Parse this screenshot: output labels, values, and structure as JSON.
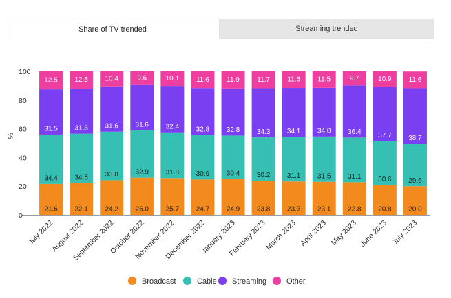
{
  "tabs": [
    {
      "label": "Share of TV trended",
      "active": true
    },
    {
      "label": "Streaming trended",
      "active": false
    }
  ],
  "chart_data": {
    "type": "bar",
    "stacked": true,
    "title": "",
    "xlabel": "",
    "ylabel": "%",
    "ylim": [
      0,
      100
    ],
    "yticks": [
      0,
      20,
      40,
      60,
      80,
      100
    ],
    "categories": [
      "July 2022",
      "August 2022",
      "September 2022",
      "October 2022",
      "November 2022",
      "December 2022",
      "January 2023",
      "February 2023",
      "March 2023",
      "April 2023",
      "May 2023",
      "June 2023",
      "July 2023"
    ],
    "series": [
      {
        "name": "Broadcast",
        "color": "#f28a1e",
        "label_color": "#1f1f1f",
        "values": [
          21.6,
          22.1,
          24.2,
          26.0,
          25.7,
          24.7,
          24.9,
          23.8,
          23.3,
          23.1,
          22.8,
          20.8,
          20.0
        ]
      },
      {
        "name": "Cable",
        "color": "#36c0b3",
        "label_color": "#1f1f1f",
        "values": [
          34.4,
          34.5,
          33.8,
          32.9,
          31.8,
          30.9,
          30.4,
          30.2,
          31.1,
          31.5,
          31.1,
          30.6,
          29.6
        ]
      },
      {
        "name": "Streaming",
        "color": "#7b3ff2",
        "label_color": "#ffffff",
        "values": [
          31.5,
          31.3,
          31.6,
          31.6,
          32.4,
          32.8,
          32.8,
          34.3,
          34.1,
          34.0,
          36.4,
          37.7,
          38.7
        ]
      },
      {
        "name": "Other",
        "color": "#ee3fa0",
        "label_color": "#ffffff",
        "values": [
          12.5,
          12.5,
          10.4,
          9.6,
          10.1,
          11.6,
          11.9,
          11.7,
          11.6,
          11.5,
          9.7,
          10.9,
          11.6
        ]
      }
    ],
    "legend_position": "bottom-center"
  }
}
